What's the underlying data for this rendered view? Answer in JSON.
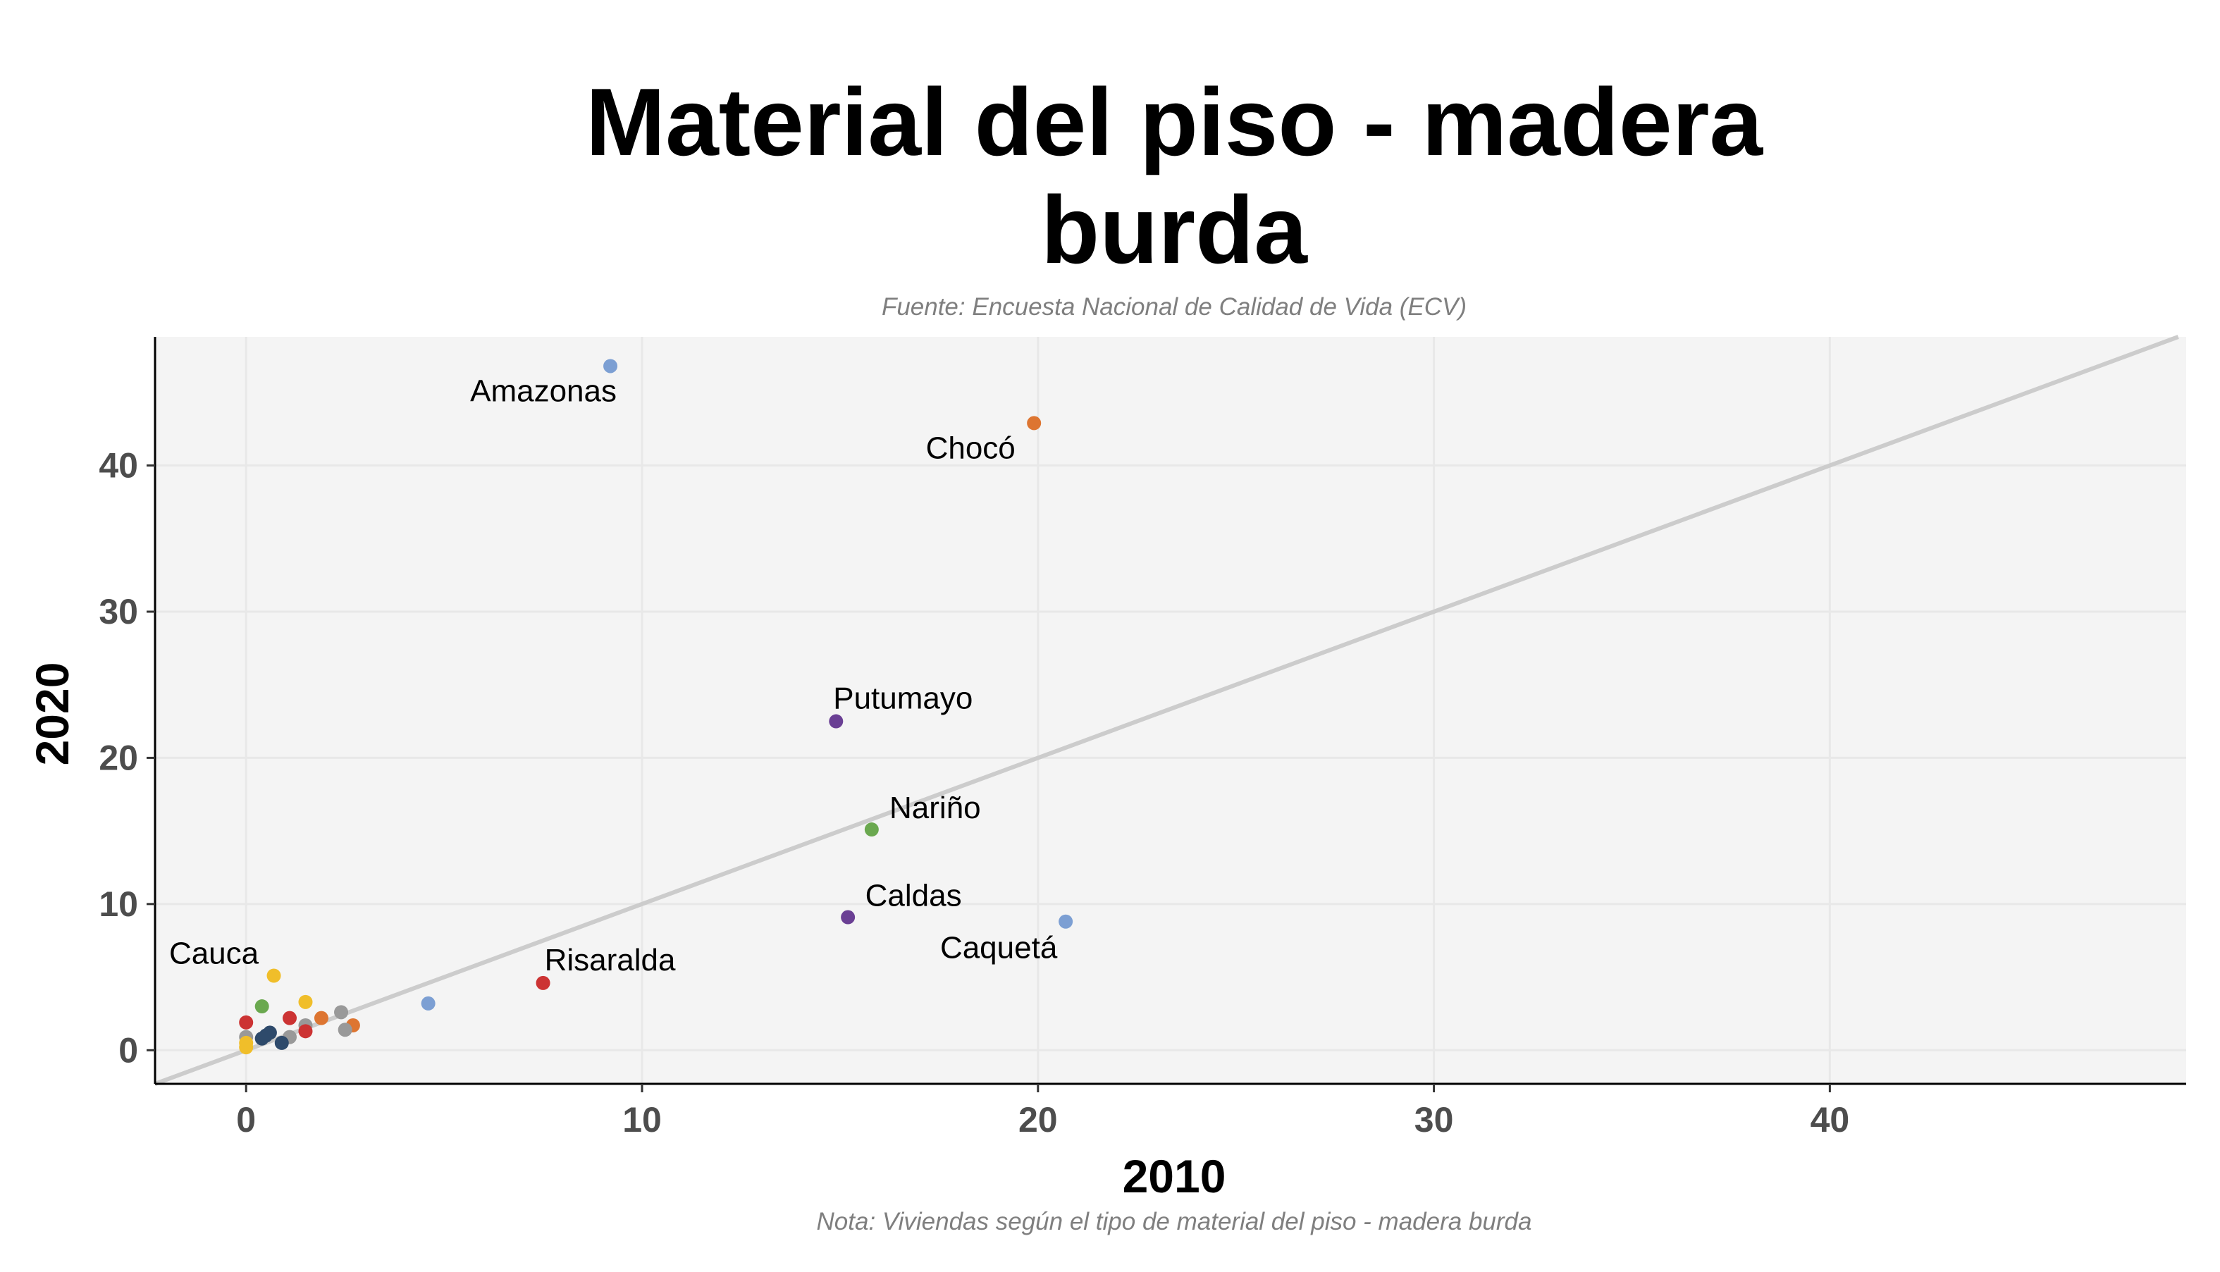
{
  "chart_data": {
    "type": "scatter",
    "title": [
      "Material del piso - madera",
      "burda"
    ],
    "subtitle": "Fuente: Encuesta Nacional de Calidad de Vida (ECV)",
    "caption": "Nota: Viviendas según el tipo de material del piso - madera burda",
    "xlabel": "2010",
    "ylabel": "2020",
    "xlim": [
      -2.3,
      49
    ],
    "ylim": [
      -2.3,
      48.8
    ],
    "xticks": [
      0,
      10,
      20,
      30,
      40
    ],
    "yticks": [
      0,
      10,
      20,
      30,
      40
    ],
    "grid": true,
    "reference_line": "y = x",
    "points": [
      {
        "x": 9.2,
        "y": 46.8,
        "color": "#7c9fd3",
        "label": "Amazonas"
      },
      {
        "x": 19.9,
        "y": 42.9,
        "color": "#dd7531",
        "label": "Chocó"
      },
      {
        "x": 14.9,
        "y": 22.5,
        "color": "#6a3f94",
        "label": "Putumayo"
      },
      {
        "x": 15.8,
        "y": 15.1,
        "color": "#6aa84f",
        "label": "Nariño"
      },
      {
        "x": 15.2,
        "y": 9.1,
        "color": "#6a3f94",
        "label": "Caldas"
      },
      {
        "x": 20.7,
        "y": 8.8,
        "color": "#7c9fd3",
        "label": "Caquetá"
      },
      {
        "x": 7.5,
        "y": 4.6,
        "color": "#cc3333",
        "label": "Risaralda"
      },
      {
        "x": 0.7,
        "y": 5.1,
        "color": "#f0be2a",
        "label": "Cauca"
      },
      {
        "x": 4.6,
        "y": 3.2,
        "color": "#7c9fd3",
        "label": ""
      },
      {
        "x": 0.4,
        "y": 3.0,
        "color": "#6aa84f",
        "label": ""
      },
      {
        "x": 1.5,
        "y": 3.3,
        "color": "#f0be2a",
        "label": ""
      },
      {
        "x": 0.0,
        "y": 1.9,
        "color": "#cc3333",
        "label": ""
      },
      {
        "x": 1.1,
        "y": 2.2,
        "color": "#cc3333",
        "label": ""
      },
      {
        "x": 1.9,
        "y": 2.2,
        "color": "#dd7531",
        "label": ""
      },
      {
        "x": 2.4,
        "y": 2.6,
        "color": "#999999",
        "label": ""
      },
      {
        "x": 2.7,
        "y": 1.7,
        "color": "#dd7531",
        "label": ""
      },
      {
        "x": 2.5,
        "y": 1.4,
        "color": "#999999",
        "label": ""
      },
      {
        "x": 1.5,
        "y": 1.7,
        "color": "#999999",
        "label": ""
      },
      {
        "x": 1.5,
        "y": 1.3,
        "color": "#cc3333",
        "label": ""
      },
      {
        "x": 1.1,
        "y": 0.9,
        "color": "#999999",
        "label": ""
      },
      {
        "x": 0.5,
        "y": 1.0,
        "color": "#2e4a6b",
        "label": ""
      },
      {
        "x": 0.6,
        "y": 1.2,
        "color": "#2e4a6b",
        "label": ""
      },
      {
        "x": 0.4,
        "y": 0.8,
        "color": "#2e4a6b",
        "label": ""
      },
      {
        "x": 0.9,
        "y": 0.5,
        "color": "#2e4a6b",
        "label": ""
      },
      {
        "x": 0.0,
        "y": 0.9,
        "color": "#999999",
        "label": ""
      },
      {
        "x": 0.0,
        "y": 0.5,
        "color": "#f0be2a",
        "label": ""
      },
      {
        "x": 0.0,
        "y": 0.2,
        "color": "#f0be2a",
        "label": ""
      }
    ],
    "colors": {
      "panel_background": "#f4f4f4",
      "gridline": "#e8e8e8",
      "reference_line": "#cccccc",
      "axis_line": "#000000"
    }
  }
}
